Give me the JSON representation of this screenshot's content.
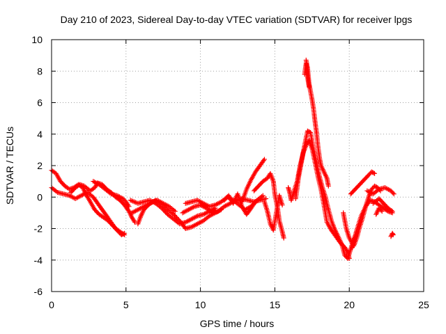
{
  "chart_data": {
    "type": "scatter",
    "title": "Day 210 of 2023, Sidereal Day-to-day VTEC variation (SDTVAR) for receiver lpgs",
    "xlabel": "GPS time / hours",
    "ylabel": "SDTVAR / TECUs",
    "xlim": [
      0,
      25
    ],
    "ylim": [
      -6,
      10
    ],
    "xticks": [
      0,
      5,
      10,
      15,
      20,
      25
    ],
    "yticks": [
      -6,
      -4,
      -2,
      0,
      2,
      4,
      6,
      8,
      10
    ],
    "grid": true,
    "marker": "+",
    "series": [
      {
        "name": "SDTVAR",
        "color": "#ff0000",
        "tracks": [
          [
            [
              0.0,
              1.7
            ],
            [
              0.3,
              1.5
            ],
            [
              0.6,
              1.0
            ],
            [
              0.9,
              0.7
            ],
            [
              1.2,
              0.5
            ],
            [
              1.5,
              0.6
            ],
            [
              1.8,
              0.8
            ],
            [
              2.1,
              0.6
            ],
            [
              2.3,
              0.2
            ],
            [
              2.6,
              -0.3
            ],
            [
              2.9,
              -0.8
            ],
            [
              3.2,
              -1.1
            ],
            [
              3.5,
              -1.3
            ],
            [
              3.8,
              -1.5
            ],
            [
              4.1,
              -1.8
            ],
            [
              4.4,
              -2.1
            ],
            [
              4.7,
              -2.4
            ],
            [
              4.9,
              -2.3
            ]
          ],
          [
            [
              0.0,
              0.6
            ],
            [
              0.4,
              0.3
            ],
            [
              0.8,
              0.2
            ],
            [
              1.2,
              0.1
            ],
            [
              1.6,
              -0.1
            ],
            [
              2.0,
              0.1
            ],
            [
              2.4,
              0.3
            ],
            [
              2.8,
              0.0
            ],
            [
              3.1,
              -0.4
            ],
            [
              3.4,
              -0.8
            ],
            [
              3.7,
              -1.2
            ],
            [
              4.0,
              -1.6
            ],
            [
              4.3,
              -2.0
            ],
            [
              4.6,
              -2.2
            ],
            [
              4.9,
              -2.4
            ]
          ],
          [
            [
              1.3,
              0.3
            ],
            [
              1.6,
              0.6
            ],
            [
              1.9,
              0.8
            ],
            [
              2.2,
              0.7
            ],
            [
              2.6,
              0.4
            ],
            [
              2.9,
              0.6
            ],
            [
              3.1,
              0.9
            ],
            [
              3.4,
              0.8
            ],
            [
              3.7,
              0.5
            ],
            [
              4.0,
              0.3
            ],
            [
              4.3,
              0.0
            ],
            [
              4.6,
              -0.2
            ],
            [
              4.9,
              -0.5
            ],
            [
              5.2,
              -0.9
            ],
            [
              5.4,
              -1.3
            ],
            [
              5.6,
              -1.6
            ]
          ],
          [
            [
              2.8,
              1.0
            ],
            [
              3.2,
              0.8
            ],
            [
              3.6,
              0.5
            ],
            [
              4.0,
              0.2
            ],
            [
              4.4,
              0.1
            ],
            [
              4.8,
              -0.1
            ],
            [
              5.0,
              -0.3
            ],
            [
              5.2,
              -0.6
            ]
          ],
          [
            [
              5.3,
              -0.2
            ],
            [
              5.8,
              -0.4
            ],
            [
              6.2,
              -0.3
            ],
            [
              6.6,
              -0.2
            ],
            [
              7.0,
              -0.4
            ],
            [
              7.4,
              -0.7
            ],
            [
              7.8,
              -1.1
            ],
            [
              8.2,
              -1.4
            ],
            [
              8.6,
              -1.7
            ],
            [
              9.0,
              -1.6
            ],
            [
              9.4,
              -1.4
            ],
            [
              9.8,
              -1.2
            ],
            [
              10.2,
              -1.1
            ],
            [
              10.6,
              -0.9
            ],
            [
              11.0,
              -0.7
            ]
          ],
          [
            [
              5.4,
              -1.0
            ],
            [
              5.8,
              -0.8
            ],
            [
              6.2,
              -0.6
            ],
            [
              6.6,
              -0.4
            ],
            [
              7.0,
              -0.2
            ],
            [
              7.4,
              -0.5
            ],
            [
              7.8,
              -0.8
            ],
            [
              8.2,
              -1.1
            ],
            [
              8.6,
              -1.5
            ],
            [
              9.0,
              -2.0
            ],
            [
              9.4,
              -1.9
            ],
            [
              9.8,
              -1.7
            ],
            [
              10.2,
              -1.5
            ],
            [
              10.6,
              -1.2
            ],
            [
              11.0,
              -1.0
            ],
            [
              11.4,
              -0.8
            ]
          ],
          [
            [
              5.8,
              -1.7
            ],
            [
              6.0,
              -1.2
            ],
            [
              6.2,
              -0.8
            ],
            [
              6.5,
              -0.5
            ],
            [
              6.8,
              -0.3
            ],
            [
              7.1,
              -0.2
            ],
            [
              7.5,
              -0.4
            ],
            [
              7.9,
              -0.6
            ],
            [
              8.3,
              -0.9
            ]
          ],
          [
            [
              8.8,
              -1.0
            ],
            [
              9.2,
              -0.8
            ],
            [
              9.6,
              -0.6
            ],
            [
              10.0,
              -0.5
            ],
            [
              10.4,
              -0.7
            ],
            [
              10.8,
              -1.0
            ],
            [
              11.2,
              -0.9
            ],
            [
              11.6,
              -0.6
            ],
            [
              12.0,
              -0.4
            ],
            [
              12.4,
              -0.2
            ],
            [
              12.8,
              -0.1
            ],
            [
              13.2,
              -0.2
            ],
            [
              13.6,
              -0.3
            ],
            [
              14.0,
              -0.2
            ],
            [
              14.4,
              -0.1
            ]
          ],
          [
            [
              9.0,
              -0.4
            ],
            [
              9.4,
              -0.3
            ],
            [
              9.8,
              -0.2
            ],
            [
              10.2,
              -0.4
            ],
            [
              10.6,
              -0.6
            ],
            [
              11.0,
              -0.5
            ],
            [
              11.4,
              -0.3
            ],
            [
              11.8,
              0.0
            ],
            [
              12.2,
              -0.2
            ],
            [
              12.6,
              -0.5
            ],
            [
              13.0,
              -0.8
            ],
            [
              13.4,
              -0.6
            ],
            [
              13.8,
              -0.2
            ],
            [
              14.2,
              0.1
            ]
          ],
          [
            [
              11.6,
              -0.2
            ],
            [
              11.9,
              0.1
            ],
            [
              12.2,
              -0.4
            ],
            [
              12.5,
              0.2
            ],
            [
              12.8,
              -0.6
            ],
            [
              13.1,
              -1.1
            ],
            [
              13.4,
              -0.7
            ],
            [
              13.7,
              -0.3
            ]
          ],
          [
            [
              12.8,
              -0.3
            ],
            [
              13.1,
              0.5
            ],
            [
              13.4,
              1.1
            ],
            [
              13.7,
              1.6
            ],
            [
              14.0,
              2.0
            ],
            [
              14.3,
              2.4
            ]
          ],
          [
            [
              13.6,
              0.4
            ],
            [
              13.9,
              0.7
            ],
            [
              14.2,
              1.0
            ],
            [
              14.5,
              1.2
            ],
            [
              14.7,
              1.5
            ],
            [
              14.9,
              1.0
            ],
            [
              15.0,
              0.2
            ],
            [
              15.2,
              -0.8
            ],
            [
              15.3,
              -1.5
            ],
            [
              15.5,
              -2.2
            ],
            [
              15.6,
              -2.6
            ]
          ],
          [
            [
              14.3,
              -0.3
            ],
            [
              14.5,
              -0.9
            ],
            [
              14.7,
              -1.7
            ],
            [
              14.9,
              -2.1
            ],
            [
              15.1,
              -1.0
            ],
            [
              15.3,
              0.1
            ],
            [
              15.5,
              -0.5
            ]
          ],
          [
            [
              15.9,
              0.6
            ],
            [
              16.0,
              0.3
            ],
            [
              16.1,
              -0.2
            ],
            [
              16.3,
              0.4
            ],
            [
              16.5,
              1.0
            ],
            [
              16.7,
              2.0
            ],
            [
              16.9,
              2.8
            ],
            [
              17.1,
              3.3
            ],
            [
              17.3,
              3.6
            ],
            [
              17.5,
              3.1
            ],
            [
              17.7,
              2.2
            ],
            [
              17.9,
              1.3
            ],
            [
              18.1,
              0.5
            ],
            [
              18.3,
              -0.5
            ],
            [
              18.5,
              -1.6
            ],
            [
              18.8,
              -2.1
            ],
            [
              19.1,
              -2.5
            ],
            [
              19.4,
              -2.9
            ],
            [
              19.7,
              -3.2
            ],
            [
              19.9,
              -3.5
            ],
            [
              20.0,
              -3.9
            ]
          ],
          [
            [
              16.4,
              -0.1
            ],
            [
              16.6,
              1.3
            ],
            [
              16.8,
              2.3
            ],
            [
              17.0,
              3.3
            ],
            [
              17.2,
              4.2
            ],
            [
              17.4,
              4.1
            ],
            [
              17.6,
              3.0
            ],
            [
              17.8,
              2.2
            ],
            [
              18.0,
              1.3
            ],
            [
              18.2,
              0.6
            ],
            [
              18.4,
              0.0
            ],
            [
              18.6,
              -0.8
            ],
            [
              18.8,
              -1.5
            ],
            [
              19.0,
              -2.0
            ],
            [
              19.2,
              -2.4
            ],
            [
              19.5,
              -3.0
            ],
            [
              19.7,
              -3.7
            ],
            [
              19.9,
              -3.9
            ],
            [
              20.1,
              -3.3
            ],
            [
              20.3,
              -2.7
            ],
            [
              20.5,
              -2.2
            ]
          ],
          [
            [
              17.1,
              8.7
            ],
            [
              17.2,
              8.2
            ],
            [
              17.3,
              7.2
            ],
            [
              17.4,
              6.7
            ],
            [
              17.5,
              6.2
            ],
            [
              17.6,
              5.6
            ],
            [
              17.7,
              4.8
            ],
            [
              17.8,
              4.1
            ],
            [
              17.9,
              3.2
            ],
            [
              18.0,
              2.5
            ],
            [
              18.1,
              2.0
            ],
            [
              18.3,
              1.6
            ],
            [
              18.5,
              1.2
            ],
            [
              18.6,
              0.7
            ]
          ],
          [
            [
              17.0,
              7.8
            ],
            [
              17.1,
              8.5
            ],
            [
              17.2,
              7.6
            ],
            [
              17.3,
              7.0
            ]
          ],
          [
            [
              19.6,
              -1.0
            ],
            [
              19.8,
              -2.0
            ],
            [
              20.0,
              -2.6
            ],
            [
              20.3,
              -3.1
            ],
            [
              20.5,
              -2.6
            ],
            [
              20.7,
              -1.9
            ],
            [
              20.9,
              -1.3
            ],
            [
              21.1,
              -0.6
            ],
            [
              21.3,
              0.0
            ],
            [
              21.5,
              0.5
            ],
            [
              21.7,
              0.7
            ],
            [
              21.9,
              0.6
            ],
            [
              22.1,
              0.4
            ]
          ],
          [
            [
              20.2,
              -3.2
            ],
            [
              20.5,
              -2.1
            ],
            [
              20.8,
              -1.2
            ],
            [
              21.1,
              -0.6
            ],
            [
              21.4,
              -0.2
            ],
            [
              21.7,
              -0.3
            ],
            [
              22.0,
              -0.5
            ],
            [
              22.3,
              -0.7
            ],
            [
              22.6,
              -0.9
            ],
            [
              22.9,
              -1.0
            ]
          ],
          [
            [
              20.1,
              0.2
            ],
            [
              20.4,
              0.5
            ],
            [
              20.7,
              0.8
            ],
            [
              21.0,
              1.1
            ],
            [
              21.3,
              1.4
            ],
            [
              21.5,
              1.6
            ],
            [
              21.7,
              1.5
            ]
          ],
          [
            [
              21.2,
              0.4
            ],
            [
              21.6,
              0.2
            ],
            [
              22.0,
              0.5
            ],
            [
              22.4,
              0.6
            ],
            [
              22.8,
              0.4
            ],
            [
              23.0,
              0.2
            ]
          ],
          [
            [
              21.6,
              -0.4
            ],
            [
              22.0,
              -0.1
            ],
            [
              22.3,
              -0.4
            ],
            [
              22.6,
              -0.7
            ],
            [
              22.9,
              -0.9
            ]
          ],
          [
            [
              21.8,
              -1.1
            ],
            [
              22.0,
              -0.7
            ],
            [
              22.2,
              -0.9
            ]
          ],
          [
            [
              22.8,
              -2.5
            ],
            [
              22.9,
              -2.3
            ],
            [
              22.95,
              -2.4
            ]
          ]
        ]
      }
    ]
  }
}
